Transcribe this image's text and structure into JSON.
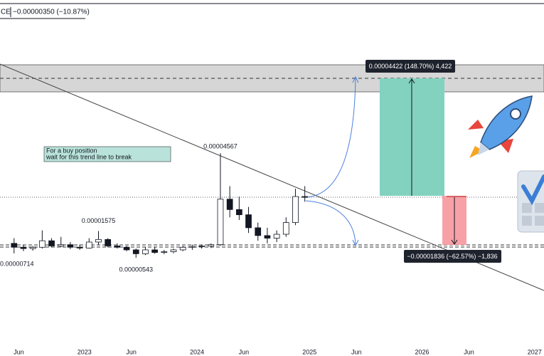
{
  "chart_data": {
    "type": "candlestick",
    "header": [
      "CE",
      "−0.00000350 (−10.87%)"
    ],
    "note": [
      "For a buy position",
      "wait for this trend line to break"
    ],
    "target_label": "0.00004422 (148.70%) 4,422",
    "stop_label": "−0.00001836 (−62.57%) −1,836",
    "x": [
      "2022-05",
      "2022-06",
      "2022-07",
      "2022-08",
      "2022-09",
      "2022-10",
      "2022-11",
      "2022-12",
      "2023-01",
      "2023-02",
      "2023-03",
      "2023-04",
      "2023-05",
      "2023-06",
      "2023-07",
      "2023-08",
      "2023-09",
      "2023-10",
      "2023-11",
      "2023-12",
      "2024-01",
      "2024-02",
      "2024-03",
      "2024-04",
      "2024-05",
      "2024-06",
      "2024-07",
      "2024-08",
      "2024-09",
      "2024-10",
      "2024-11",
      "2024-12"
    ],
    "open": [
      1.1e-05,
      9.5e-06,
      9e-06,
      9.5e-06,
      1.2e-05,
      1e-05,
      1.05e-05,
      9.5e-06,
      9.2e-06,
      1.15e-05,
      1.25e-05,
      1e-05,
      9.5e-06,
      8.5e-06,
      7e-06,
      8.5e-06,
      7.5e-06,
      7.8e-06,
      8.5e-06,
      9.5e-06,
      9.8e-06,
      1e-05,
      1.05e-05,
      2.8e-05,
      2.4e-05,
      2.2e-05,
      1.7e-05,
      1.4e-05,
      1.3e-05,
      1.45e-05,
      1.9e-05,
      2.9e-05
    ],
    "high": [
      1.3e-05,
      1.05e-05,
      1e-05,
      1.6e-05,
      1.3e-05,
      1.35e-05,
      1.15e-05,
      1.05e-05,
      1.3e-05,
      1.575e-05,
      1.3e-05,
      1.1e-05,
      1e-05,
      9e-06,
      9.5e-06,
      9.5e-06,
      8.5e-06,
      9e-06,
      1e-05,
      1.05e-05,
      1.05e-05,
      1.1e-05,
      4.567e-05,
      3.3e-05,
      2.9e-05,
      2.5e-05,
      1.9e-05,
      1.7e-05,
      1.6e-05,
      2.1e-05,
      3.2e-05,
      3.3e-05
    ],
    "low": [
      7.14e-06,
      8e-06,
      8.2e-06,
      9e-06,
      9.5e-06,
      9.5e-06,
      8.8e-06,
      8.5e-06,
      9e-06,
      1.05e-05,
      9.5e-06,
      9e-06,
      8e-06,
      5.43e-06,
      6.5e-06,
      7e-06,
      6.8e-06,
      7.2e-06,
      8e-06,
      8.5e-06,
      9e-06,
      9.2e-06,
      1e-05,
      2.1e-05,
      2e-05,
      1.5e-05,
      1.2e-05,
      1.1e-05,
      1.15e-05,
      1.35e-05,
      1.8e-05,
      2.7e-05
    ],
    "close": [
      9.5e-06,
      9e-06,
      9.5e-06,
      1.2e-05,
      1e-05,
      1.05e-05,
      9.5e-06,
      9.2e-06,
      1.15e-05,
      1.25e-05,
      1e-05,
      9.5e-06,
      8.5e-06,
      7e-06,
      8.5e-06,
      7.5e-06,
      7.8e-06,
      8.5e-06,
      9.5e-06,
      9.8e-06,
      1e-05,
      1.05e-05,
      2.8e-05,
      2.4e-05,
      2.2e-05,
      1.7e-05,
      1.4e-05,
      1.3e-05,
      1.45e-05,
      1.9e-05,
      2.9e-05,
      2.87e-05
    ],
    "up_color": "#ffffff",
    "down_color": "#131722",
    "ylim": [
      -2.82e-05,
      0.0001032
    ],
    "xlim": [
      "2022-04",
      "2027-02"
    ],
    "xticks": [
      {
        "value": "2022-06",
        "label": "Jun"
      },
      {
        "value": "2023-01",
        "label": "2023"
      },
      {
        "value": "2023-06",
        "label": "Jun"
      },
      {
        "value": "2024-01",
        "label": "2024"
      },
      {
        "value": "2024-06",
        "label": "Jun"
      },
      {
        "value": "2025-01",
        "label": "2025"
      },
      {
        "value": "2025-06",
        "label": "Jun"
      },
      {
        "value": "2026-01",
        "label": "2026"
      },
      {
        "value": "2026-06",
        "label": "Jun"
      },
      {
        "value": "2027-01",
        "label": "2027"
      }
    ]
  }
}
